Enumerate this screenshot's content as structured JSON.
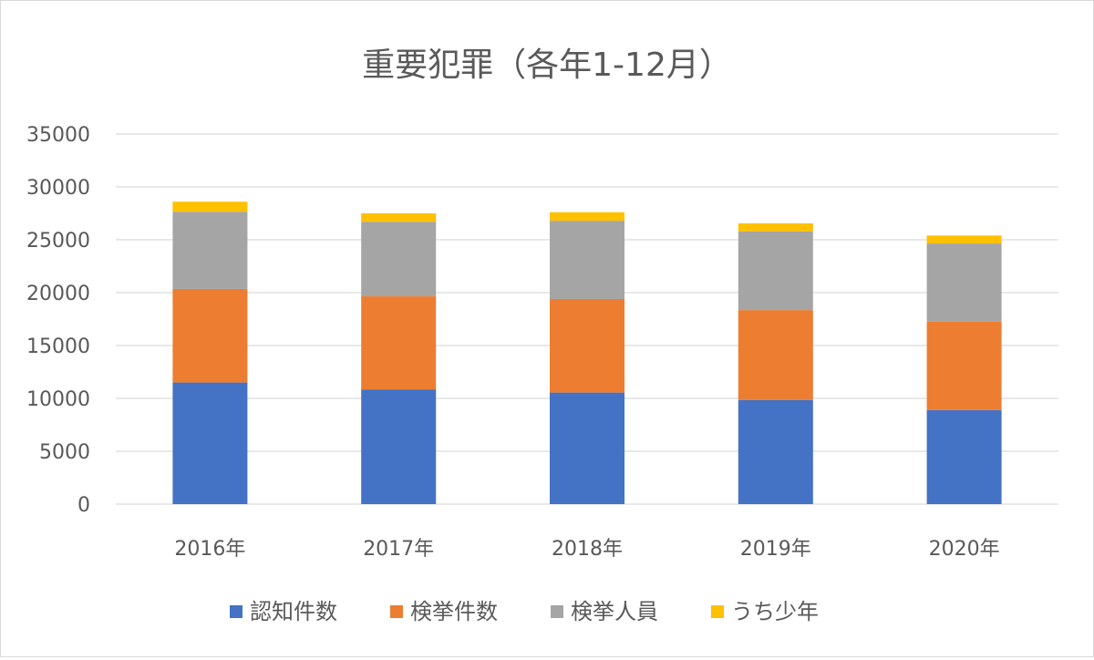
{
  "chart_data": {
    "type": "bar",
    "stacked": true,
    "title": "重要犯罪（各年1-12月）",
    "categories": [
      "2016年",
      "2017年",
      "2018年",
      "2019年",
      "2020年"
    ],
    "ylim": [
      0,
      35000
    ],
    "yticks": [
      0,
      5000,
      10000,
      15000,
      20000,
      25000,
      30000,
      35000
    ],
    "grid": true,
    "legend_position": "bottom",
    "series": [
      {
        "name": "認知件数",
        "color": "#4472c4",
        "values": [
          11500,
          10850,
          10550,
          9850,
          8900
        ]
      },
      {
        "name": "検挙件数",
        "color": "#ed7d31",
        "values": [
          8850,
          8800,
          8850,
          8500,
          8350
        ]
      },
      {
        "name": "検挙人員",
        "color": "#a5a5a5",
        "values": [
          7300,
          7050,
          7400,
          7450,
          7400
        ]
      },
      {
        "name": "うち少年",
        "color": "#ffc000",
        "values": [
          950,
          800,
          800,
          750,
          750
        ]
      }
    ]
  }
}
